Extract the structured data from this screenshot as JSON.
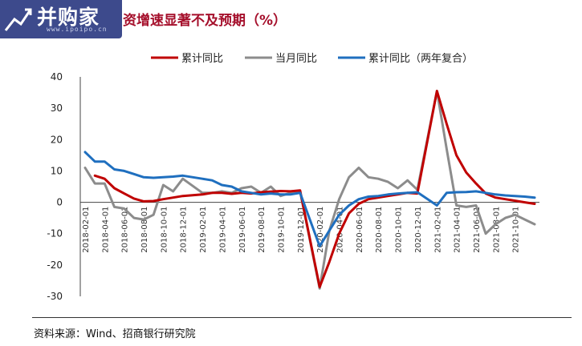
{
  "header": {
    "logo_text": "并购家",
    "logo_url": "www.ipoipo.cn",
    "title": "资增速显著不及预期（%）"
  },
  "footer": {
    "source": "资料来源：Wind、招商银行研究院"
  },
  "chart_data": {
    "type": "line",
    "title": "资增速显著不及预期（%）",
    "xlabel": "",
    "ylabel": "",
    "ylim": [
      -30,
      40
    ],
    "yticks": [
      40,
      30,
      20,
      10,
      0,
      -10,
      -20,
      -30
    ],
    "grid": false,
    "legend": "top",
    "x": [
      "2018-02",
      "2018-03",
      "2018-04",
      "2018-05",
      "2018-06",
      "2018-07",
      "2018-08",
      "2018-09",
      "2018-10",
      "2018-11",
      "2018-12",
      "2019-01",
      "2019-02",
      "2019-03",
      "2019-04",
      "2019-05",
      "2019-06",
      "2019-07",
      "2019-08",
      "2019-09",
      "2019-10",
      "2019-11",
      "2019-12",
      "2020-01",
      "2020-02",
      "2020-03",
      "2020-04",
      "2020-05",
      "2020-06",
      "2020-07",
      "2020-08",
      "2020-09",
      "2020-10",
      "2020-11",
      "2020-12",
      "2021-01",
      "2021-02",
      "2021-03",
      "2021-04",
      "2021-05",
      "2021-06",
      "2021-07",
      "2021-08",
      "2021-09",
      "2021-10",
      "2021-11",
      "2021-12"
    ],
    "xtick_labels": [
      "2018-02-01",
      "2018-04-01",
      "2018-06-01",
      "2018-08-01",
      "2018-10-01",
      "2018-12-01",
      "2019-02-01",
      "2019-04-01",
      "2019-06-01",
      "2019-08-01",
      "2019-10-01",
      "2019-12-01",
      "2020-02-01",
      "2020-04-01",
      "2020-06-01",
      "2020-08-01",
      "2020-10-01",
      "2020-12-01",
      "2021-02-01",
      "2021-04-01",
      "2021-06-01",
      "2021-08-01",
      "2021-10-01"
    ],
    "series": [
      {
        "name": "累计同比",
        "color": "#c00000",
        "values": [
          null,
          8.5,
          7.5,
          4.5,
          2.8,
          1.2,
          0.3,
          0.4,
          1.0,
          1.5,
          2.0,
          null,
          2.5,
          3.0,
          3.0,
          2.7,
          3.0,
          2.8,
          3.2,
          3.4,
          3.6,
          3.5,
          3.8,
          null,
          -27.0,
          -19.0,
          -10.0,
          -3.5,
          -0.5,
          1.0,
          1.5,
          2.0,
          2.5,
          3.0,
          2.8,
          null,
          35.5,
          25.0,
          15.0,
          9.5,
          6.0,
          2.8,
          1.5,
          1.0,
          0.5,
          0,
          -0.5
        ]
      },
      {
        "name": "当月同比",
        "color": "#8c8c8c",
        "values": [
          11.0,
          6.0,
          6.0,
          -1.5,
          -2.0,
          -5.0,
          -5.5,
          -4.0,
          5.5,
          3.5,
          7.5,
          null,
          3.0,
          3.0,
          3.5,
          3.0,
          4.5,
          5.0,
          3.0,
          5.0,
          2.0,
          3.0,
          3.5,
          null,
          -27.5,
          -9.0,
          1.0,
          8.0,
          11.0,
          8.0,
          7.5,
          6.5,
          4.5,
          7.0,
          4.0,
          null,
          35.5,
          17.0,
          -1.0,
          -1.5,
          -1.0,
          -10.0,
          -7.0,
          -5.0,
          -4.0,
          -5.5,
          -7.0
        ]
      },
      {
        "name": "累计同比（两年复合）",
        "color": "#1f6fbf",
        "values": [
          16.0,
          13.0,
          13.0,
          10.5,
          10.0,
          9.0,
          8.0,
          7.8,
          8.0,
          8.2,
          8.5,
          null,
          7.5,
          7.0,
          5.5,
          5.0,
          3.5,
          3.0,
          2.5,
          2.8,
          2.5,
          2.5,
          3.0,
          null,
          -14.0,
          -9.0,
          -4.0,
          -1.0,
          1.0,
          1.8,
          2.0,
          2.5,
          2.8,
          3.0,
          3.2,
          null,
          -1.0,
          3.0,
          3.2,
          3.3,
          3.5,
          3.0,
          2.5,
          2.2,
          2.0,
          1.8,
          1.5
        ]
      }
    ]
  }
}
